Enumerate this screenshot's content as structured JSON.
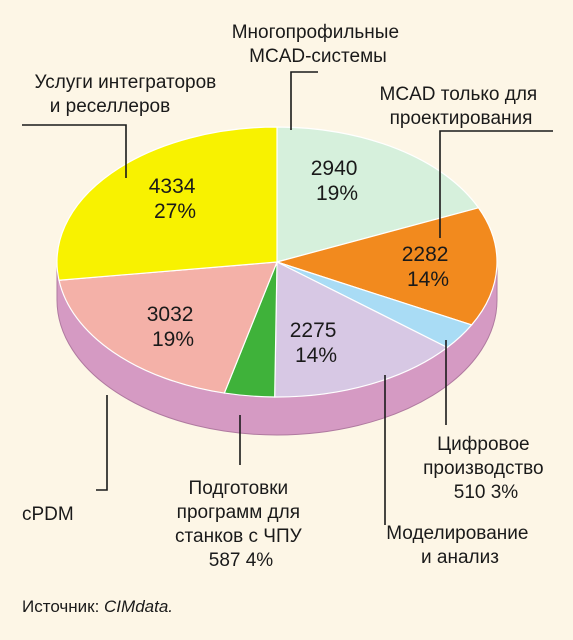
{
  "chart_data": {
    "type": "pie",
    "title": "",
    "slices": [
      {
        "label": "Многопрофильные MCAD-системы",
        "value": 2940,
        "percent": "19%",
        "color": "#d6f0dc"
      },
      {
        "label": "MCAD только для проектирования",
        "value": 2282,
        "percent": "14%",
        "color": "#f28a1e"
      },
      {
        "label": "Цифровое производство",
        "value": 510,
        "percent": "3%",
        "color": "#a9dcf5"
      },
      {
        "label": "Моделирование и анализ",
        "value": 2275,
        "percent": "14%",
        "color": "#d7c8e4"
      },
      {
        "label": "Подготовки программ для станков с ЧПУ",
        "value": 587,
        "percent": "4%",
        "color": "#3fb23a"
      },
      {
        "label": "cPDM",
        "value": 3032,
        "percent": "19%",
        "color": "#f4b1a8"
      },
      {
        "label": "Услуги интеграторов и реселлеров",
        "value": 4334,
        "percent": "27%",
        "color": "#f8f200"
      }
    ],
    "side_color": "#d59ac3"
  },
  "labels": {
    "multiprofile": [
      "Многопрофильные",
      "MCAD-системы"
    ],
    "mcad_design": [
      "MCAD только для",
      "проектирования"
    ],
    "digital": [
      "Цифровое",
      "производство",
      "510 3%"
    ],
    "modeling": [
      "Моделирование",
      "и анализ"
    ],
    "cnc": [
      "Подготовки",
      "программ для",
      "станков с ЧПУ",
      "587 4%"
    ],
    "cpdm": [
      "cPDM"
    ],
    "services": [
      "Услуги интеграторов",
      "и реселлеров"
    ]
  },
  "values_text": {
    "multiprofile": [
      "2940",
      "19%"
    ],
    "mcad_design": [
      "2282",
      "14%"
    ],
    "modeling": [
      "2275",
      "14%"
    ],
    "cpdm": [
      "3032",
      "19%"
    ],
    "services": [
      "4334",
      "27%"
    ]
  },
  "source": {
    "prefix": "Источник: ",
    "name": "CIMdata."
  }
}
